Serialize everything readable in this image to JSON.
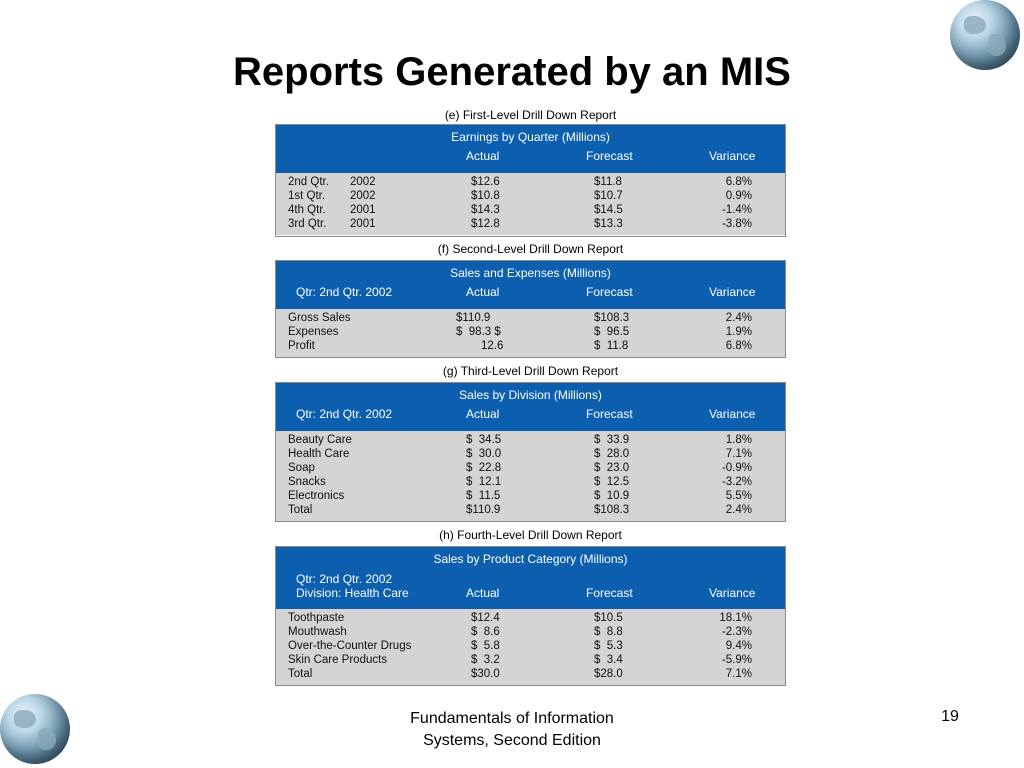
{
  "title": "Reports Generated by an MIS",
  "reports": {
    "e": {
      "heading": "(e) First-Level Drill Down Report",
      "title": "Earnings by Quarter (Millions)",
      "cols": [
        "Actual",
        "Forecast",
        "Variance"
      ],
      "rows": [
        {
          "label": "2nd Qtr.",
          "year": "2002",
          "actual": "$12.6",
          "forecast": "$11.8",
          "variance": "6.8%"
        },
        {
          "label": "1st Qtr.",
          "year": "2002",
          "actual": "$10.8",
          "forecast": "$10.7",
          "variance": "0.9%"
        },
        {
          "label": "4th Qtr.",
          "year": "2001",
          "actual": "$14.3",
          "forecast": "$14.5",
          "variance": "-1.4%"
        },
        {
          "label": "3rd Qtr.",
          "year": "2001",
          "actual": "$12.8",
          "forecast": "$13.3",
          "variance": "-3.8%"
        }
      ]
    },
    "f": {
      "heading": "(f) Second-Level Drill Down Report",
      "title": "Sales and Expenses (Millions)",
      "qtr": "Qtr: 2nd Qtr. 2002",
      "cols": [
        "Actual",
        "Forecast",
        "Variance"
      ],
      "rows": [
        {
          "label": "Gross Sales",
          "actual": "$110.9",
          "forecast": "$108.3",
          "variance": "2.4%"
        },
        {
          "label": "Expenses",
          "actual": "$  98.3 $",
          "forecast": "$  96.5",
          "variance": "1.9%"
        },
        {
          "label": "Profit",
          "actual": "12.6",
          "forecast": "$  11.8",
          "variance": "6.8%"
        }
      ]
    },
    "g": {
      "heading": "(g) Third-Level Drill Down Report",
      "title": "Sales by Division (Millions)",
      "qtr": "Qtr: 2nd Qtr. 2002",
      "cols": [
        "Actual",
        "Forecast",
        "Variance"
      ],
      "rows": [
        {
          "label": "Beauty Care",
          "actual": "$  34.5",
          "forecast": "$  33.9",
          "variance": "1.8%"
        },
        {
          "label": "Health Care",
          "actual": "$  30.0",
          "forecast": "$  28.0",
          "variance": "7.1%"
        },
        {
          "label": "Soap",
          "actual": "$  22.8",
          "forecast": "$  23.0",
          "variance": "-0.9%"
        },
        {
          "label": "Snacks",
          "actual": "$  12.1",
          "forecast": "$  12.5",
          "variance": "-3.2%"
        },
        {
          "label": "Electronics",
          "actual": "$  11.5",
          "forecast": "$  10.9",
          "variance": "5.5%"
        },
        {
          "label": "Total",
          "actual": "$110.9",
          "forecast": "$108.3",
          "variance": "2.4%"
        }
      ]
    },
    "h": {
      "heading": "(h) Fourth-Level Drill Down Report",
      "title": "Sales by Product Category (Millions)",
      "qtr": "Qtr: 2nd Qtr. 2002",
      "division": "Division: Health Care",
      "cols": [
        "Actual",
        "Forecast",
        "Variance"
      ],
      "rows": [
        {
          "label": "Toothpaste",
          "actual": "$12.4",
          "forecast": "$10.5",
          "variance": "18.1%"
        },
        {
          "label": "Mouthwash",
          "actual": "$  8.6",
          "forecast": "$  8.8",
          "variance": "-2.3%"
        },
        {
          "label": "Over-the-Counter Drugs",
          "actual": "$  5.8",
          "forecast": "$  5.3",
          "variance": "9.4%"
        },
        {
          "label": "Skin Care Products",
          "actual": "$  3.2",
          "forecast": "$  3.4",
          "variance": "-5.9%"
        },
        {
          "label": "Total",
          "actual": "$30.0",
          "forecast": "$28.0",
          "variance": "7.1%"
        }
      ]
    }
  },
  "footer": {
    "line1": "Fundamentals of Information",
    "line2": "Systems, Second Edition",
    "page": "19"
  },
  "colors": {
    "header_blue": "#0b5fae",
    "body_gray": "#d4d4d4"
  },
  "icons": [
    "globe-icon"
  ]
}
